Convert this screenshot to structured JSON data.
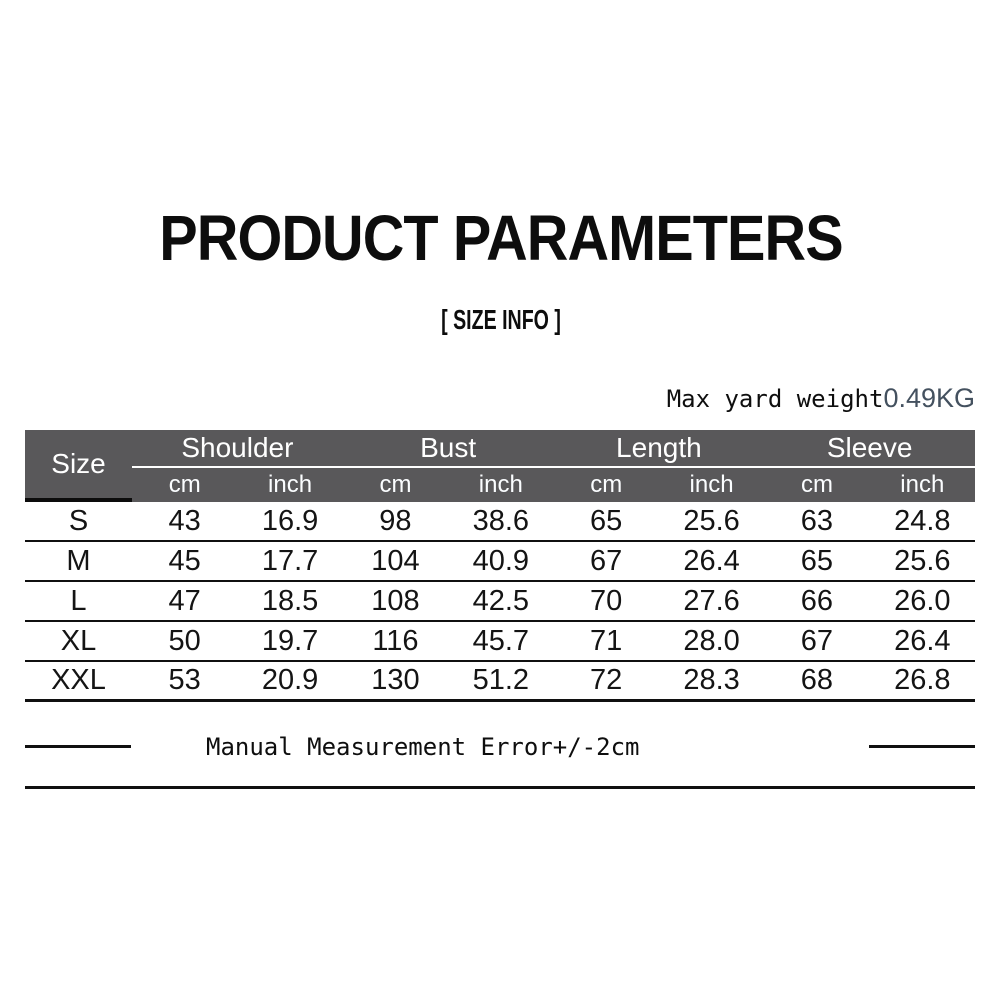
{
  "page": {
    "title": "PRODUCT PARAMETERS",
    "subtitle": "[ SIZE INFO ]",
    "weight_note": {
      "label": "Max yard weight",
      "value": "0.49KG"
    },
    "footer_note": "Manual Measurement Error+/-2cm"
  },
  "size_table": {
    "corner_header": "Size",
    "groups": [
      "Shoulder",
      "Bust",
      "Length",
      "Sleeve"
    ],
    "unit_headers": [
      "cm",
      "inch"
    ],
    "rows": [
      {
        "size": "S",
        "values": [
          "43",
          "16.9",
          "98",
          "38.6",
          "65",
          "25.6",
          "63",
          "24.8"
        ]
      },
      {
        "size": "M",
        "values": [
          "45",
          "17.7",
          "104",
          "40.9",
          "67",
          "26.4",
          "65",
          "25.6"
        ]
      },
      {
        "size": "L",
        "values": [
          "47",
          "18.5",
          "108",
          "42.5",
          "70",
          "27.6",
          "66",
          "26.0"
        ]
      },
      {
        "size": "XL",
        "values": [
          "50",
          "19.7",
          "116",
          "45.7",
          "71",
          "28.0",
          "67",
          "26.4"
        ]
      },
      {
        "size": "XXL",
        "values": [
          "53",
          "20.9",
          "130",
          "51.2",
          "72",
          "28.3",
          "68",
          "26.8"
        ]
      }
    ],
    "colors": {
      "header_bg": "#59585a",
      "header_text": "#ffffff",
      "body_text": "#141414",
      "rule_line": "#101010",
      "weight_value": "#44515f"
    }
  }
}
